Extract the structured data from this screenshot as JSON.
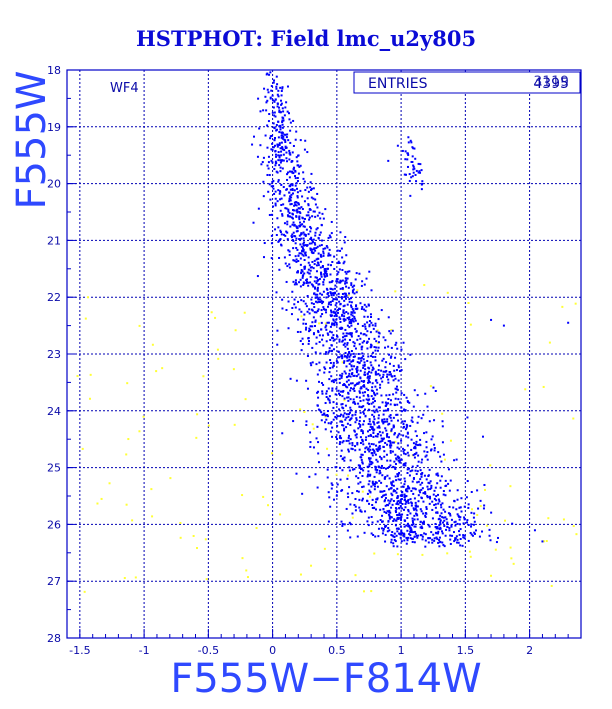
{
  "title": "HSTPHOT: Field lmc_u2y805",
  "panel_label": "WF4",
  "stats": {
    "label": "ENTRIES",
    "value": "4395",
    "value_overprint": "3119"
  },
  "colors": {
    "frame": "#0000c8",
    "grid": "#0000b4",
    "title": "#0b0bd6",
    "axis_title": "#2f49ff",
    "main_points": "#0000ff",
    "rejected_points": "#ffff33"
  },
  "chart_data": {
    "type": "scatter",
    "title": "HSTPHOT: Field lmc_u2y805",
    "xlabel": "F555W−F814W",
    "ylabel": "F555W",
    "xlim": [
      -1.6,
      2.4
    ],
    "ylim": [
      28,
      18
    ],
    "y_inverted": true,
    "grid": true,
    "xticks": [
      -1.5,
      -1,
      -0.5,
      0,
      0.5,
      1,
      1.5,
      2
    ],
    "xtick_labels": [
      "-1.5",
      "-1",
      "-0.5",
      "0",
      "0.5",
      "1",
      "1.5",
      "2"
    ],
    "yticks": [
      18,
      19,
      20,
      21,
      22,
      23,
      24,
      25,
      26,
      27,
      28
    ],
    "ytick_labels": [
      "18",
      "19",
      "20",
      "21",
      "22",
      "23",
      "24",
      "25",
      "26",
      "27",
      "28"
    ],
    "series": [
      {
        "color": "#0000ff",
        "count": 4395,
        "description_of_locus": [
          [
            0.0,
            18.0
          ],
          [
            0.05,
            19.0
          ],
          [
            0.12,
            20.0
          ],
          [
            0.25,
            21.0
          ],
          [
            0.45,
            22.0
          ],
          [
            0.62,
            23.0
          ],
          [
            0.75,
            24.0
          ],
          [
            0.9,
            25.0
          ],
          [
            1.1,
            26.0
          ],
          [
            1.25,
            26.35
          ]
        ],
        "red_clump": [
          [
            1.05,
            19.3
          ],
          [
            1.12,
            20.0
          ]
        ]
      },
      {
        "color": "#ffff33",
        "count": 130,
        "xrange": [
          -1.55,
          2.4
        ],
        "yrange": [
          21.5,
          27.2
        ]
      }
    ]
  }
}
